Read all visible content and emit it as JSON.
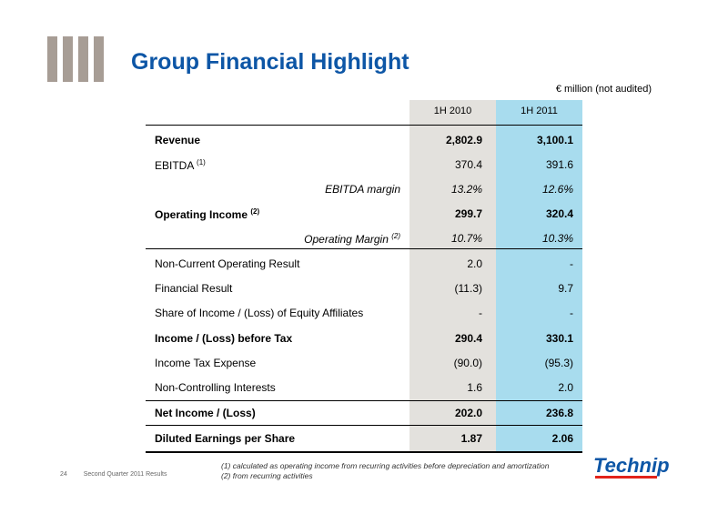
{
  "page": {
    "title": "Group Financial Highlight",
    "units": "€ million (not audited)"
  },
  "table": {
    "headers": [
      "1H 2010",
      "1H 2011"
    ],
    "rows": [
      {
        "label": "Revenue",
        "sup": "",
        "v2010": "2,802.9",
        "v2011": "3,100.1"
      },
      {
        "label": "EBITDA",
        "sup": "(1)",
        "v2010": "370.4",
        "v2011": "391.6"
      },
      {
        "label": "EBITDA margin",
        "sup": "",
        "v2010": "13.2%",
        "v2011": "12.6%"
      },
      {
        "label": "Operating Income",
        "sup": "(2)",
        "v2010": "299.7",
        "v2011": "320.4"
      },
      {
        "label": "Operating Margin",
        "sup": "(2)",
        "v2010": "10.7%",
        "v2011": "10.3%"
      },
      {
        "label": "Non-Current Operating Result",
        "sup": "",
        "v2010": "2.0",
        "v2011": "-"
      },
      {
        "label": "Financial Result",
        "sup": "",
        "v2010": "(11.3)",
        "v2011": "9.7"
      },
      {
        "label": "Share of Income / (Loss) of Equity Affiliates",
        "sup": "",
        "v2010": "-",
        "v2011": "-"
      },
      {
        "label": "Income / (Loss) before Tax",
        "sup": "",
        "v2010": "290.4",
        "v2011": "330.1"
      },
      {
        "label": "Income Tax Expense",
        "sup": "",
        "v2010": "(90.0)",
        "v2011": "(95.3)"
      },
      {
        "label": "Non-Controlling Interests",
        "sup": "",
        "v2010": "1.6",
        "v2011": "2.0"
      },
      {
        "label": "Net Income / (Loss)",
        "sup": "",
        "v2010": "202.0",
        "v2011": "236.8"
      },
      {
        "label": "Diluted Earnings per Share",
        "sup": "",
        "v2010": "1.87",
        "v2011": "2.06"
      }
    ]
  },
  "footnotes": [
    "(1) calculated as operating income from recurring activities before depreciation and amortization",
    "(2) from recurring activities"
  ],
  "footer": {
    "page_number": "24",
    "deck_name": "Second Quarter 2011 Results"
  },
  "logo": {
    "text": "Technip",
    "colors": {
      "text": "#0d56a6",
      "stripe": "#e2231a"
    }
  }
}
